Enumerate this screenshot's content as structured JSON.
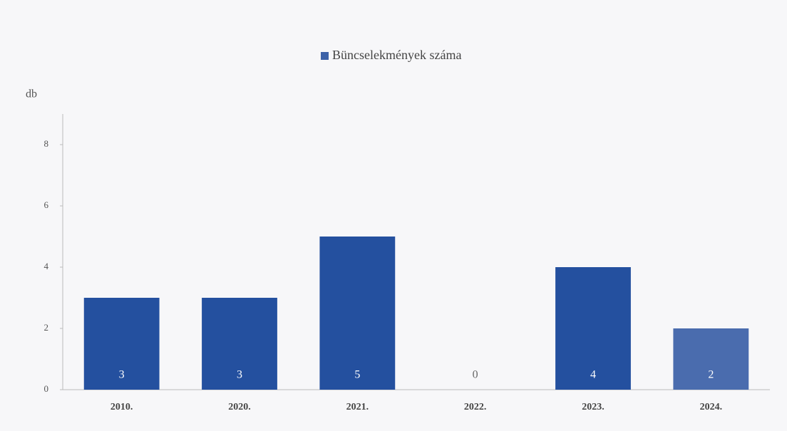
{
  "chart_data": {
    "type": "bar",
    "legend": "Büncselekmények száma",
    "y_label": "db",
    "categories": [
      "2010.",
      "2020.",
      "2021.",
      "2022.",
      "2023.",
      "2024."
    ],
    "values": [
      3,
      3,
      5,
      0,
      4,
      2
    ],
    "color": "#24509f",
    "colors": [
      "#24509f",
      "#24509f",
      "#24509f",
      "#24509f",
      "#24509f",
      "#4a6cae"
    ],
    "ylim": [
      0,
      9
    ],
    "yticks": [
      0,
      2,
      4,
      6,
      8
    ],
    "grid": false
  }
}
